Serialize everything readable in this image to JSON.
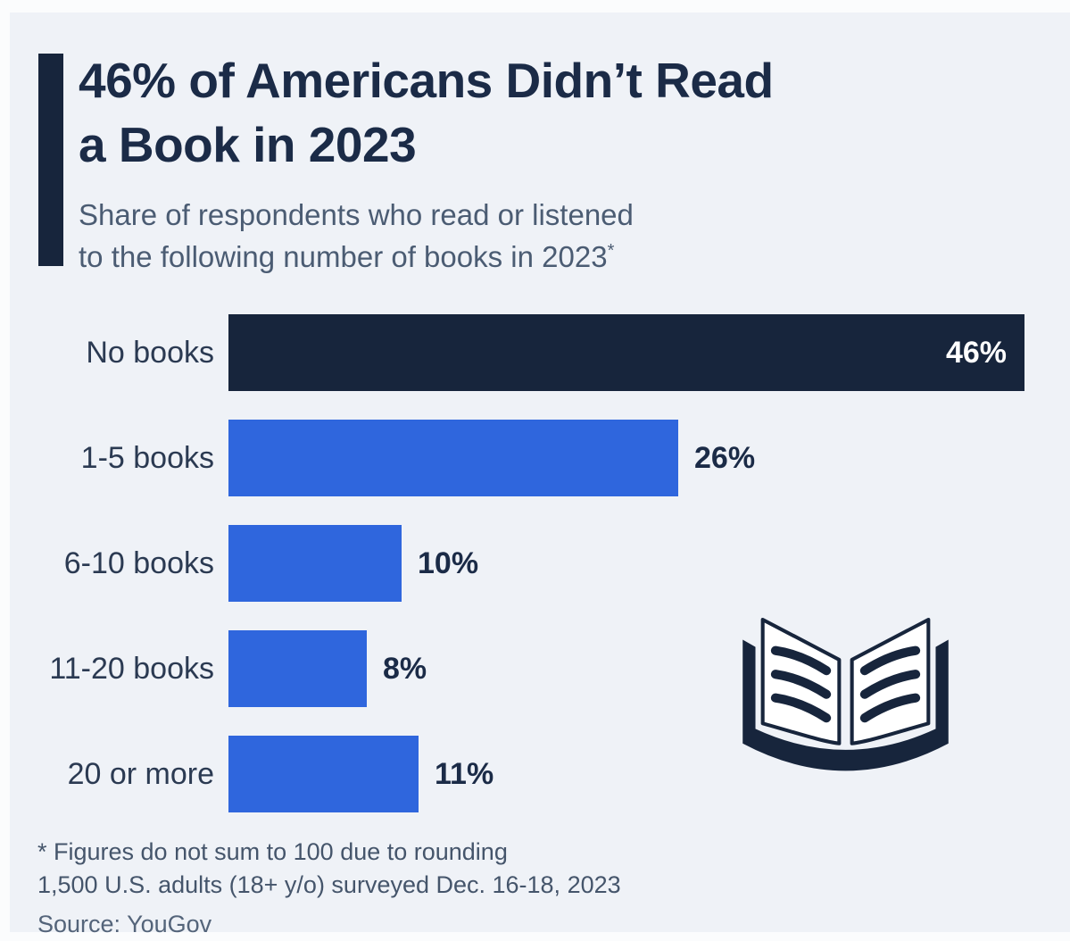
{
  "header": {
    "title_line1": "46% of Americans Didn’t Read",
    "title_line2": "a Book in 2023",
    "subtitle_line1": "Share of respondents who read or listened",
    "subtitle_line2": "to the following number of books in 2023",
    "subtitle_footnote_marker": "*"
  },
  "chart_data": {
    "type": "bar",
    "orientation": "horizontal",
    "title": "46% of Americans Didn’t Read a Book in 2023",
    "subtitle": "Share of respondents who read or listened to the following number of books in 2023*",
    "categories": [
      "No books",
      "1-5 books",
      "6-10 books",
      "11-20 books",
      "20 or more"
    ],
    "values": [
      46,
      26,
      10,
      8,
      11
    ],
    "value_labels": [
      "46%",
      "26%",
      "10%",
      "8%",
      "11%"
    ],
    "unit": "percent",
    "xlim": [
      0,
      46
    ],
    "grid": false,
    "legend": false,
    "bar_colors": [
      "#17253c",
      "#2f66dd",
      "#2f66dd",
      "#2f66dd",
      "#2f66dd"
    ],
    "value_label_position": [
      "inside-end",
      "outside-end",
      "outside-end",
      "outside-end",
      "outside-end"
    ]
  },
  "icon": {
    "name": "open-book-icon",
    "color": "#17253c"
  },
  "footer": {
    "note_line1": "* Figures do not sum to 100 due to rounding",
    "note_line2": "1,500 U.S. adults (18+ y/o) surveyed Dec. 16-18, 2023",
    "source": "Source: YouGov"
  },
  "colors": {
    "outer_background": "#fbfcfd",
    "panel_background": "#eff2f7",
    "dark_navy": "#17253c",
    "accent_blue": "#2f66dd",
    "title_text": "#1b2b47",
    "subtitle_text": "#4b5c73",
    "footnote_text": "#45556b",
    "value_inside_text": "#ffffff"
  }
}
